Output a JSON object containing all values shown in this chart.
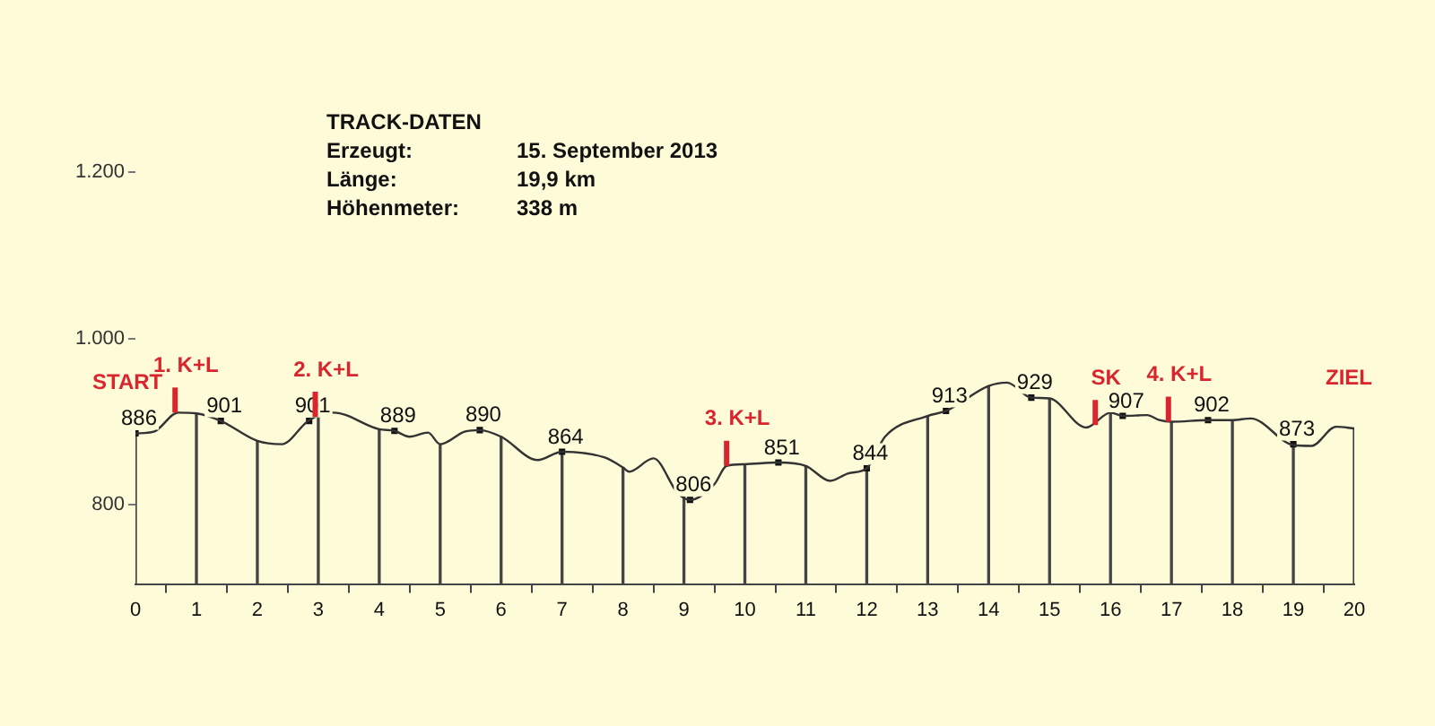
{
  "chart_data": {
    "type": "line",
    "x": [
      0,
      0.3,
      0.7,
      1,
      1.4,
      2,
      2.4,
      2.85,
      3.25,
      4,
      4.25,
      4.5,
      4.8,
      5,
      5.4,
      5.65,
      6,
      6.6,
      7,
      7.7,
      8,
      8.1,
      8.5,
      8.9,
      9.1,
      9.5,
      9.7,
      10,
      10.55,
      11,
      11.4,
      11.7,
      12,
      12.3,
      13,
      13.3,
      14,
      14.3,
      14.7,
      15,
      15.6,
      16,
      16.2,
      16.6,
      16.8,
      17,
      17.6,
      18,
      18.3,
      19,
      19.3,
      19.7,
      20
    ],
    "series": [
      {
        "type": "bar",
        "color": "#444444",
        "x": [
          0,
          1,
          2,
          3,
          4,
          5,
          6,
          7,
          8,
          9,
          10,
          11,
          12,
          13,
          14,
          15,
          16,
          17,
          18,
          19,
          20
        ],
        "values": [
          886,
          910,
          877,
          905,
          891,
          873,
          882,
          864,
          845,
          810,
          849,
          847,
          844,
          907,
          943,
          928,
          911,
          900,
          902,
          872,
          892
        ]
      },
      {
        "color": "#333333",
        "values": [
          886,
          888,
          911,
          910,
          901,
          877,
          873,
          902,
          911,
          891,
          889,
          882,
          887,
          873,
          888,
          890,
          882,
          854,
          864,
          857,
          845,
          840,
          856,
          814,
          806,
          825,
          847,
          849,
          851,
          847,
          829,
          838,
          844,
          882,
          907,
          913,
          943,
          947,
          929,
          928,
          893,
          911,
          907,
          908,
          902,
          900,
          902,
          902,
          904,
          872,
          871,
          894,
          892
        ]
      },
      {
        "type": "scatter",
        "marker": "square",
        "color": "#111111",
        "x": [
          0,
          1.4,
          2.85,
          4.25,
          5.65,
          7,
          9.1,
          10.55,
          12,
          13.3,
          14.7,
          16.2,
          17.6,
          19
        ],
        "values": [
          886,
          901,
          901,
          889,
          890,
          864,
          806,
          851,
          844,
          913,
          929,
          907,
          902,
          873
        ],
        "value_labels": [
          "886",
          "901",
          "901",
          "889",
          "890",
          "864",
          "806",
          "851",
          "844",
          "913",
          "929",
          "907",
          "902",
          "873"
        ]
      }
    ],
    "xlim": [
      0,
      20
    ],
    "xticks": [
      0,
      1,
      2,
      3,
      4,
      5,
      6,
      7,
      8,
      9,
      10,
      11,
      12,
      13,
      14,
      15,
      16,
      17,
      18,
      19,
      20
    ],
    "ylim": [
      705,
      1200
    ],
    "yticks": [
      {
        "value": 800,
        "label": "800"
      },
      {
        "value": 1000,
        "label": "1.000"
      },
      {
        "value": 1200,
        "label": "1.200"
      }
    ],
    "legend": false,
    "annotations": [
      "TRACK-DATEN",
      "Erzeugt:",
      "15. September 2013",
      "Länge:",
      "19,9 km",
      "Höhenmeter:",
      "338 m",
      "START",
      "ZIEL",
      {
        "text": "1. K+L",
        "x": 0.65,
        "y": 911
      },
      {
        "text": "2. K+L",
        "x": 2.95,
        "y": 906
      },
      {
        "text": "3. K+L",
        "x": 9.7,
        "y": 847
      },
      {
        "text": "SK",
        "x": 15.75,
        "y": 896
      },
      {
        "text": "4. K+L",
        "x": 16.95,
        "y": 900
      }
    ]
  }
}
